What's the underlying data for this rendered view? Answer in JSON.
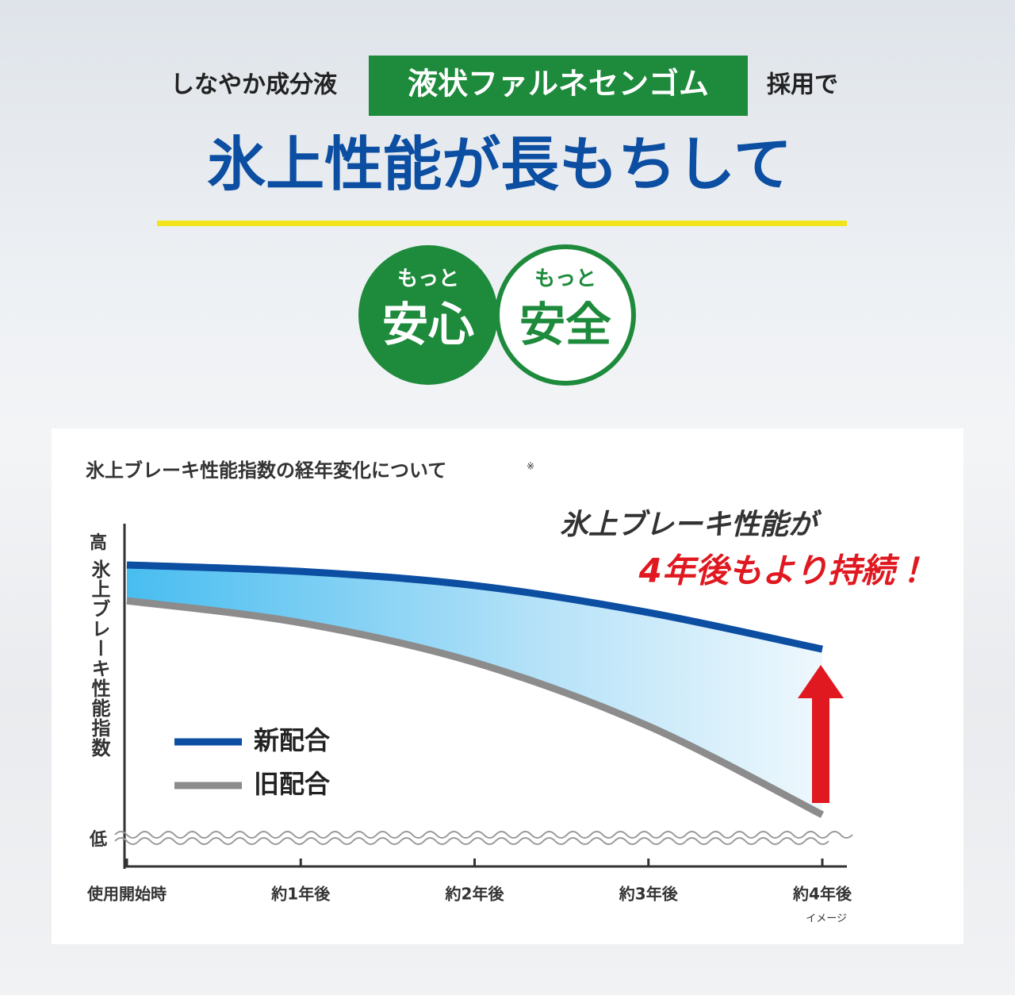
{
  "header": {
    "lead_before": "しなやか成分液",
    "highlight": "液状ファルネセンゴム",
    "lead_after": "採用で",
    "title": "氷上性能が長もちして"
  },
  "badges": [
    {
      "small": "もっと",
      "big": "安心"
    },
    {
      "small": "もっと",
      "big": "安全"
    }
  ],
  "chart_data": {
    "type": "line",
    "title": "氷上ブレーキ性能指数の経年変化について",
    "title_note": "※",
    "y_label": "氷上ブレーキ性能指数",
    "categories": [
      "使用開始時",
      "約1年後",
      "約2年後",
      "約3年後",
      "約4年後"
    ],
    "series": [
      {
        "name": "新配合",
        "color": "#0b4ea2",
        "values": [
          92.7,
          90.5,
          85.7,
          76.5,
          64
        ]
      },
      {
        "name": "旧配合",
        "color": "#8c8c8c",
        "values": [
          80.5,
          73,
          59.5,
          37.8,
          7.6
        ]
      }
    ],
    "ylim": [
      0,
      100
    ],
    "yticks": [
      {
        "value": 0,
        "label": "低"
      },
      {
        "value": 100,
        "label": "高"
      }
    ],
    "annotation": [
      "氷上ブレーキ性能が",
      "4年後もより持続！"
    ],
    "footnote": "イメージ"
  }
}
